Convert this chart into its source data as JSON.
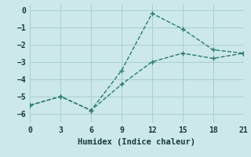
{
  "line1_x": [
    0,
    3,
    6,
    9,
    12,
    15,
    18,
    21
  ],
  "line1_y": [
    -5.5,
    -5.0,
    -5.8,
    -3.5,
    -0.2,
    -1.1,
    -2.3,
    -2.5
  ],
  "line2_x": [
    0,
    3,
    6,
    9,
    12,
    15,
    18,
    21
  ],
  "line2_y": [
    -5.5,
    -5.0,
    -5.8,
    -4.3,
    -3.0,
    -2.5,
    -2.8,
    -2.5
  ],
  "color": "#2a7a6e",
  "bg_color": "#cce8e8",
  "grid_color": "#aacece",
  "xlabel": "Humidex (Indice chaleur)",
  "xlim": [
    0,
    21
  ],
  "ylim": [
    -6.5,
    0.3
  ],
  "xticks": [
    0,
    3,
    6,
    9,
    12,
    15,
    18,
    21
  ],
  "yticks": [
    0,
    -1,
    -2,
    -3,
    -4,
    -5,
    -6
  ],
  "marker": "+",
  "marker_size": 5,
  "line_width": 1.0,
  "linestyle": "--"
}
